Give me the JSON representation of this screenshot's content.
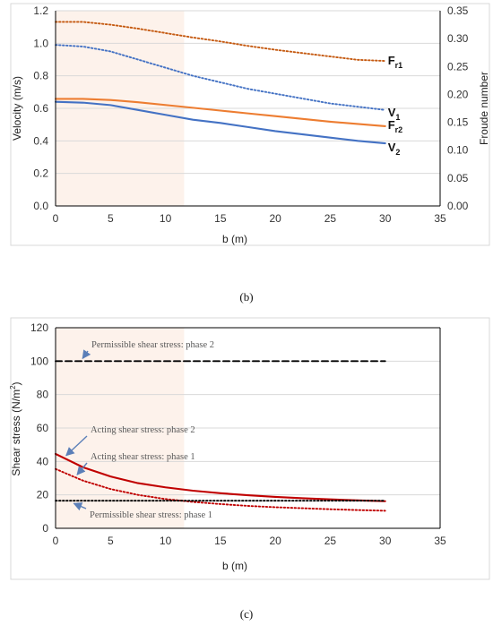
{
  "chart_data": [
    {
      "type": "line",
      "panel_label": "(b)",
      "xlabel": "b (m)",
      "ylabel": "Velocity (m/s)",
      "y2label": "Froude number",
      "xlim": [
        0,
        35
      ],
      "ylim": [
        0,
        1.2
      ],
      "y2lim": [
        0,
        0.35
      ],
      "x_ticks": [
        0,
        5,
        10,
        15,
        20,
        25,
        30,
        35
      ],
      "y_ticks": [
        0,
        0.2,
        0.4,
        0.6,
        0.8,
        1.0,
        1.2
      ],
      "y_tick_labels": [
        "0.0",
        "0.2",
        "0.4",
        "0.6",
        "0.8",
        "1.0",
        "1.2"
      ],
      "y2_ticks": [
        0,
        0.05,
        0.1,
        0.15,
        0.2,
        0.25,
        0.3,
        0.35
      ],
      "y2_tick_labels": [
        "0.00",
        "0.05",
        "0.10",
        "0.15",
        "0.20",
        "0.25",
        "0.30",
        "0.35"
      ],
      "shaded_region_x": [
        0,
        11.7
      ],
      "grid": "horizontal",
      "x": [
        0,
        2.5,
        5,
        7.5,
        10,
        12.5,
        15,
        17.5,
        20,
        22.5,
        25,
        27.5,
        30
      ],
      "series": [
        {
          "name": "V1",
          "label_main": "V",
          "label_sub": "1",
          "axis": "left",
          "style": "dotted",
          "color": "#4472C4",
          "values": [
            0.99,
            0.98,
            0.95,
            0.9,
            0.85,
            0.8,
            0.76,
            0.72,
            0.69,
            0.66,
            0.63,
            0.61,
            0.59
          ]
        },
        {
          "name": "V2",
          "label_main": "V",
          "label_sub": "2",
          "axis": "left",
          "style": "solid",
          "color": "#4472C4",
          "values": [
            0.64,
            0.635,
            0.62,
            0.59,
            0.56,
            0.53,
            0.51,
            0.485,
            0.46,
            0.44,
            0.42,
            0.4,
            0.385
          ]
        },
        {
          "name": "Fr1",
          "label_main": "F",
          "label_sub": "r1",
          "axis": "right",
          "style": "dotted",
          "color": "#C55A11",
          "values": [
            0.33,
            0.33,
            0.325,
            0.318,
            0.31,
            0.302,
            0.295,
            0.287,
            0.28,
            0.274,
            0.268,
            0.262,
            0.26
          ]
        },
        {
          "name": "Fr2",
          "label_main": "F",
          "label_sub": "r2",
          "axis": "right",
          "style": "solid",
          "color": "#ED7D31",
          "values": [
            0.192,
            0.192,
            0.19,
            0.186,
            0.181,
            0.176,
            0.171,
            0.166,
            0.161,
            0.156,
            0.151,
            0.147,
            0.143
          ]
        }
      ]
    },
    {
      "type": "line",
      "panel_label": "(c)",
      "xlabel": "b (m)",
      "ylabel": "Shear stress (N/m",
      "ylabel_sup": "2",
      "ylabel_tail": ")",
      "xlim": [
        0,
        35
      ],
      "ylim": [
        0,
        120
      ],
      "x_ticks": [
        0,
        5,
        10,
        15,
        20,
        25,
        30,
        35
      ],
      "y_ticks": [
        0,
        20,
        40,
        60,
        80,
        100,
        120
      ],
      "y_tick_labels": [
        "0",
        "20",
        "40",
        "60",
        "80",
        "100",
        "120"
      ],
      "shaded_region_x": [
        0,
        11.7
      ],
      "grid": "horizontal",
      "x": [
        0,
        2.5,
        5,
        7.5,
        10,
        12.5,
        15,
        17.5,
        20,
        22.5,
        25,
        27.5,
        30
      ],
      "series": [
        {
          "name": "Permissible shear stress: phase 2",
          "style": "dashed",
          "color": "#000000",
          "values": [
            100,
            100,
            100,
            100,
            100,
            100,
            100,
            100,
            100,
            100,
            100,
            100,
            100
          ]
        },
        {
          "name": "Acting shear stress: phase 2",
          "style": "solid",
          "color": "#C00000",
          "values": [
            44.5,
            36.5,
            31,
            27,
            24.5,
            22.5,
            21,
            19.8,
            18.8,
            18,
            17.3,
            16.7,
            16.2
          ]
        },
        {
          "name": "Acting shear stress: phase 1",
          "style": "dotted",
          "color": "#C00000",
          "values": [
            35.5,
            28.5,
            23.5,
            20,
            17.5,
            15.8,
            14.5,
            13.4,
            12.6,
            12,
            11.4,
            10.9,
            10.5
          ]
        },
        {
          "name": "Permissible shear stress: phase 1",
          "style": "dotted",
          "color": "#000000",
          "values": [
            16.5,
            16.5,
            16.5,
            16.5,
            16.5,
            16.5,
            16.5,
            16.5,
            16.5,
            16.5,
            16.5,
            16.5,
            16.5
          ]
        }
      ],
      "annotations": [
        {
          "text": "Permissible shear stress: phase 2",
          "series": 0,
          "arrow_x": 2.3
        },
        {
          "text": "Acting shear stress: phase 2",
          "series": 1,
          "arrow_x": 0.8
        },
        {
          "text": "Acting shear stress: phase 1",
          "series": 2,
          "arrow_x": 1.8
        },
        {
          "text": "Permissible shear stress: phase 1",
          "series": 3,
          "arrow_x": 1.5
        }
      ]
    }
  ]
}
